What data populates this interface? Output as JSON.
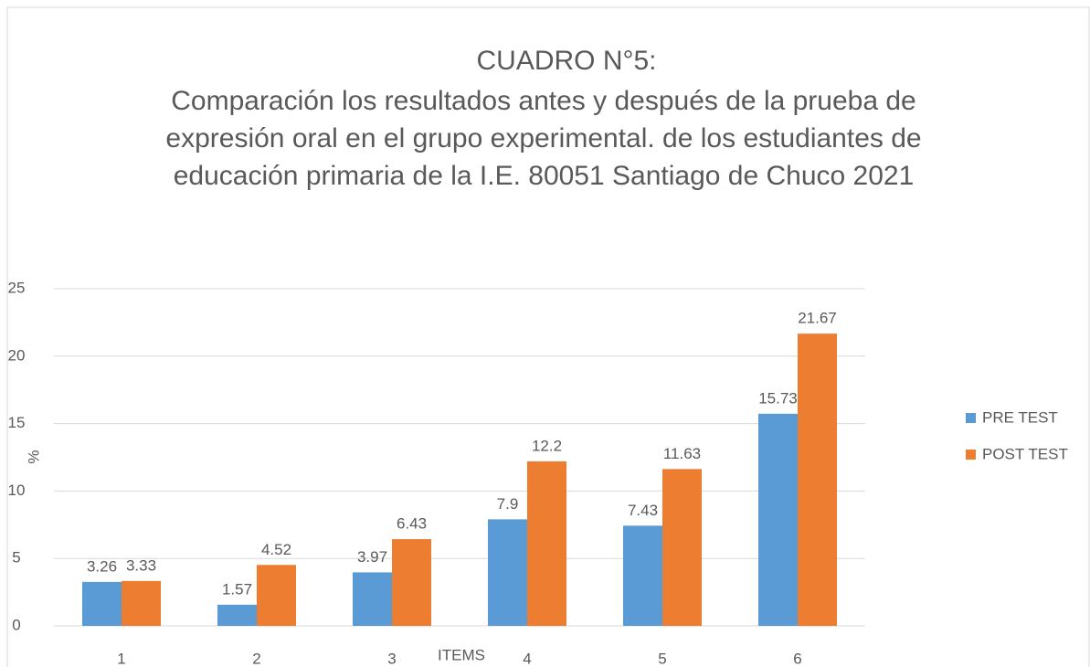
{
  "chart_data": {
    "type": "bar",
    "title": "CUADRO N°5:",
    "subtitle": [
      "Comparación los resultados antes y después de la prueba de",
      "expresión oral en el grupo experimental. de los estudiantes de",
      "educación primaria de la I.E. 80051 Santiago de Chuco 2021"
    ],
    "x_label": "ITEMS",
    "y_label": "%",
    "categories": [
      "1",
      "2",
      "3",
      "4",
      "5",
      "6"
    ],
    "series": [
      {
        "name": "PRE TEST",
        "color": "#5b9bd5",
        "values": [
          3.26,
          1.57,
          3.97,
          7.9,
          7.43,
          15.73
        ]
      },
      {
        "name": "POST TEST",
        "color": "#ed7d31",
        "values": [
          3.33,
          4.52,
          6.43,
          12.2,
          11.63,
          21.67
        ]
      }
    ],
    "ylim": [
      0,
      25
    ],
    "yticks": [
      0,
      5,
      10,
      15,
      20,
      25
    ],
    "grid": true,
    "legend": "right"
  }
}
